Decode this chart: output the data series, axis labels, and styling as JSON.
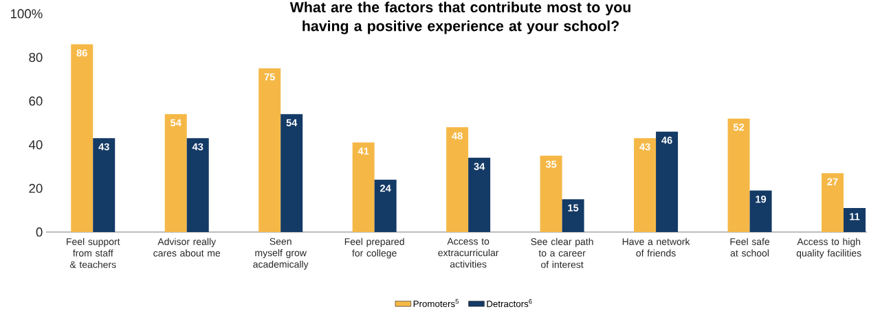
{
  "chart_data": {
    "type": "bar",
    "title": "What are the factors that contribute most to you having a positive experience at your school?",
    "categories": [
      "Feel support from staff & teachers",
      "Advisor really cares about me",
      "Seen myself grow academically",
      "Feel prepared for college",
      "Access to extracurricular activities",
      "See clear path to a career of interest",
      "Have a network of friends",
      "Feel safe at school",
      "Access to high quality facilities"
    ],
    "series": [
      {
        "name": "Promoters$^{5}$",
        "color": "#f5b847",
        "values": [
          86,
          54,
          75,
          41,
          48,
          35,
          43,
          52,
          27
        ]
      },
      {
        "name": "Detractors$^{6}$",
        "color": "#143a66",
        "values": [
          43,
          43,
          54,
          24,
          34,
          15,
          46,
          19,
          11
        ]
      }
    ],
    "ylim": [
      0,
      100
    ],
    "yticks": [
      0,
      20,
      40,
      60,
      80,
      {
        "value": 100,
        "label": "100%"
      }
    ],
    "data_labels": true,
    "legend": "bottom",
    "grid": false
  }
}
